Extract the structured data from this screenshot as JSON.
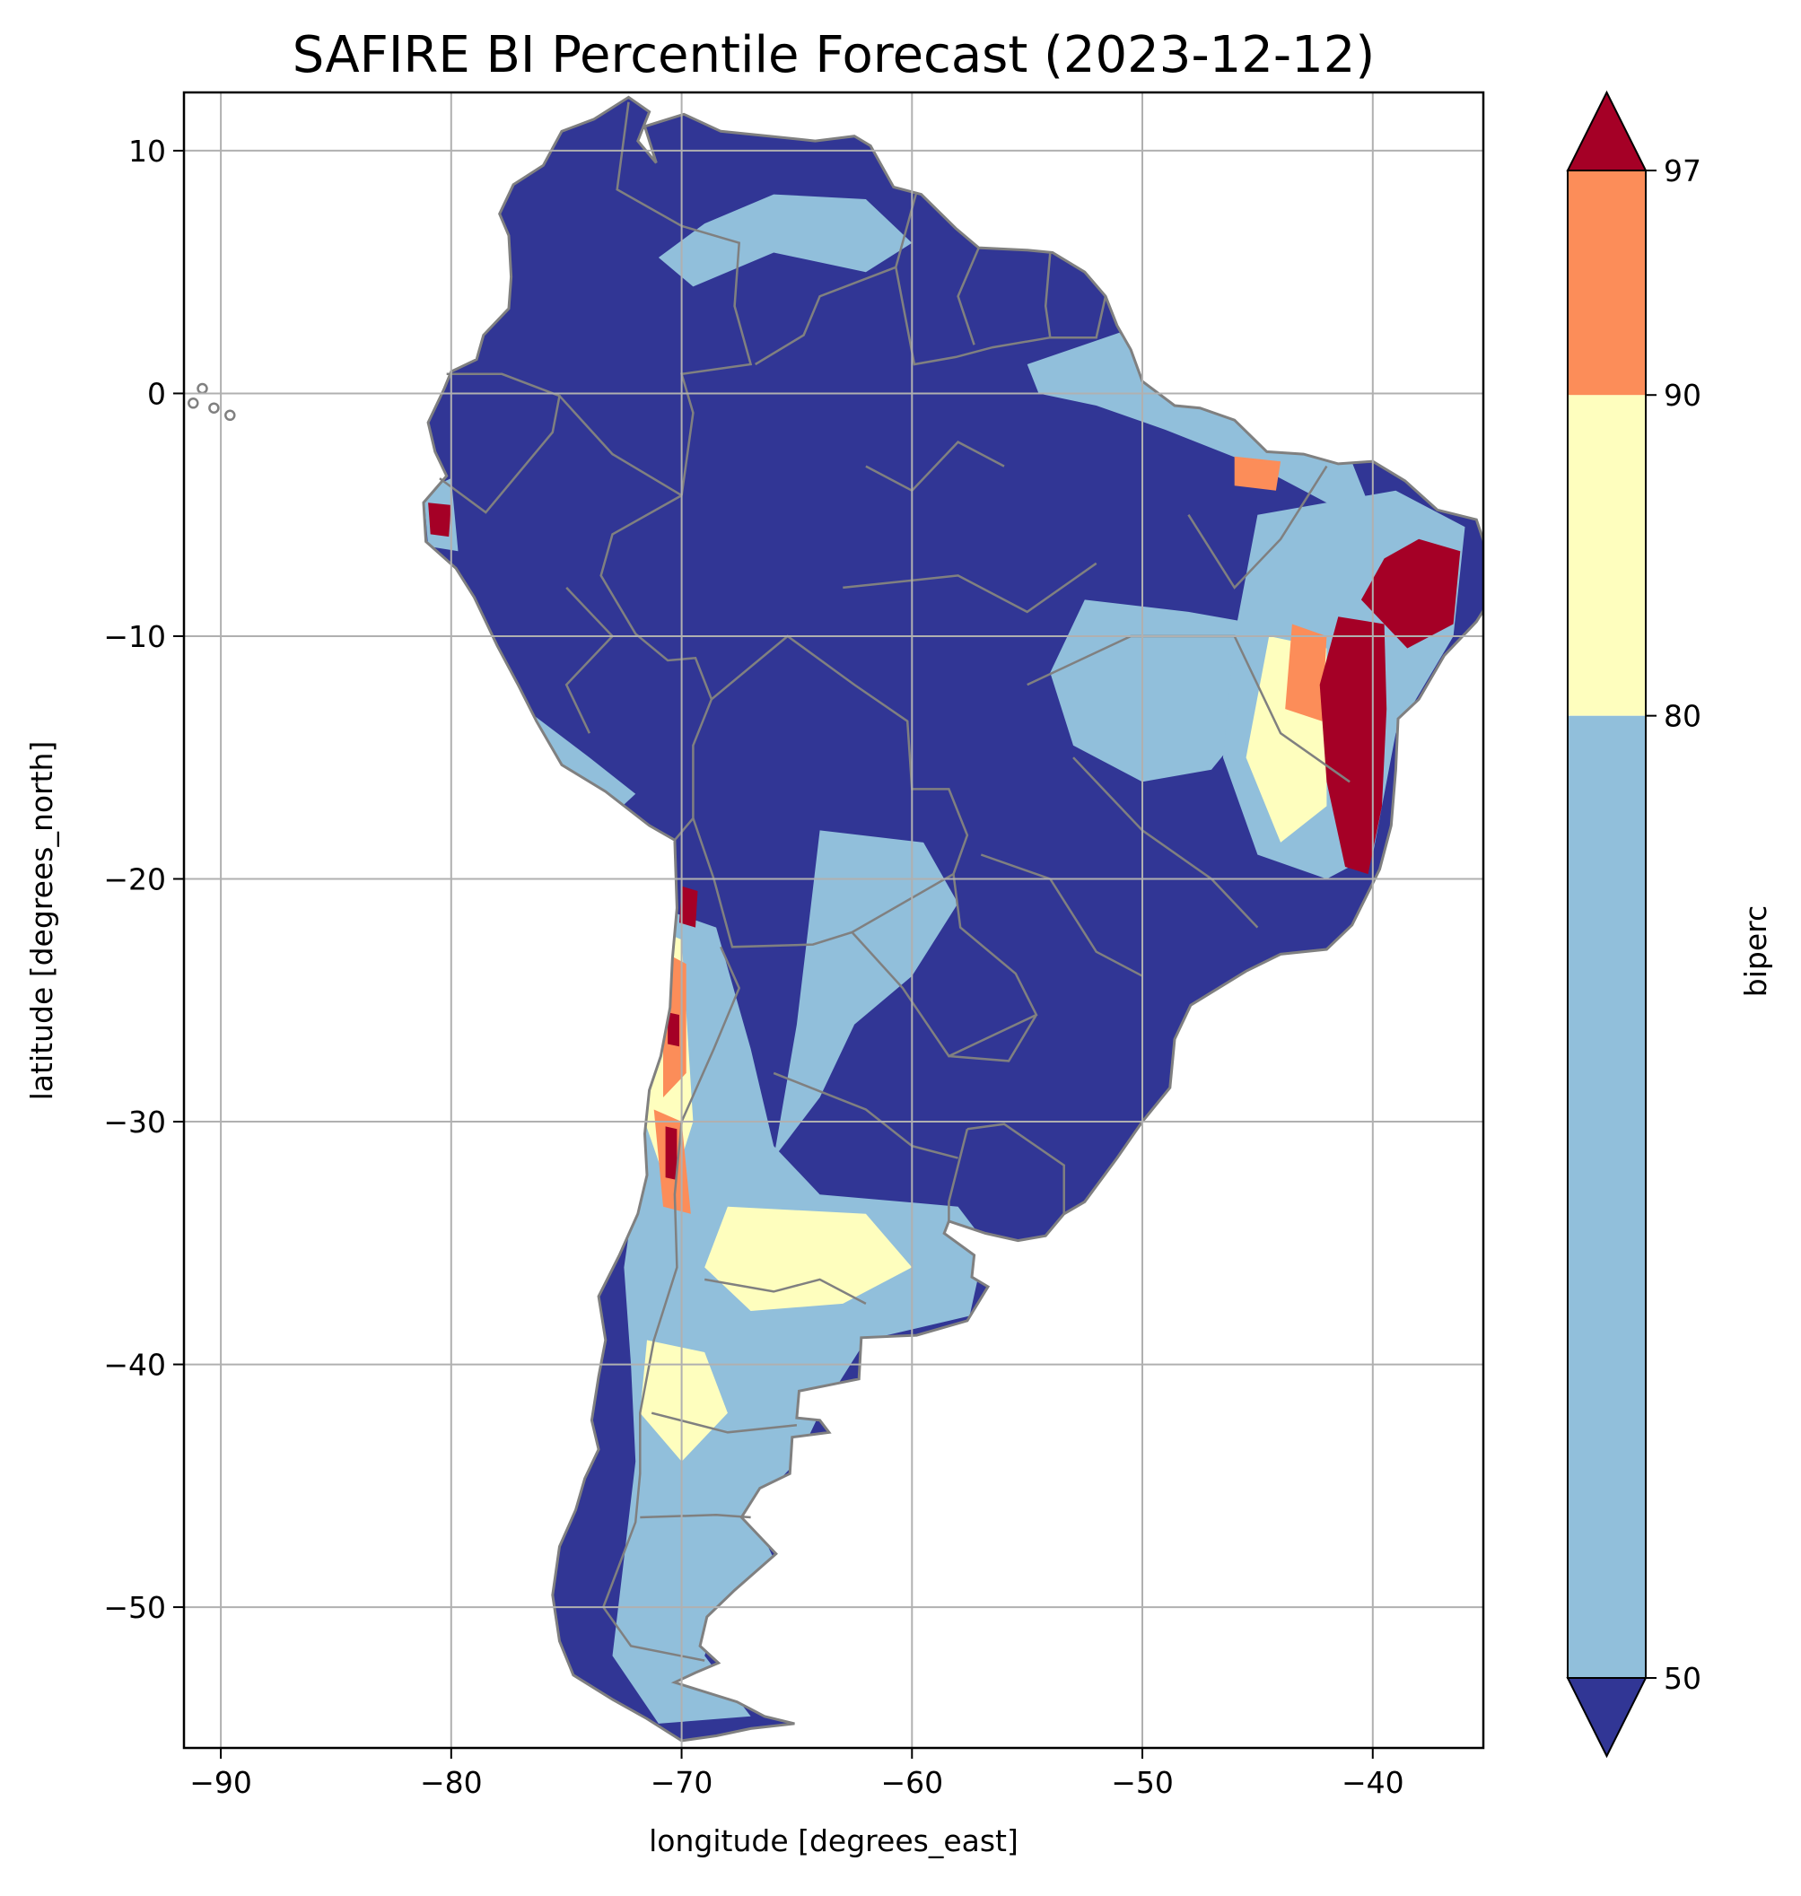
{
  "title": "SAFIRE BI Percentile Forecast (2023-12-12)",
  "map": {
    "xlabel": "longitude [degrees_east]",
    "ylabel": "latitude [degrees_north]",
    "xlim": [
      -91.6,
      -35.2
    ],
    "ylim": [
      -55.8,
      12.4
    ],
    "xticks": [
      -90,
      -80,
      -70,
      -60,
      -50,
      -40
    ],
    "yticks": [
      10,
      0,
      -10,
      -20,
      -30,
      -40,
      -50
    ],
    "xtick_labels": [
      "−90",
      "−80",
      "−70",
      "−60",
      "−50",
      "−40"
    ],
    "ytick_labels": [
      "10",
      "0",
      "−10",
      "−20",
      "−30",
      "−40",
      "−50"
    ],
    "grid": true,
    "land_outline_color": "#808080",
    "gridline_color": "#b0b0b0"
  },
  "colorbar": {
    "label": "biperc",
    "ticks": [
      50,
      80,
      90,
      97
    ],
    "tick_labels": [
      "50",
      "80",
      "90",
      "97"
    ],
    "colors": {
      "below_50": "#313695",
      "50_80": "#91bfdb",
      "80_90": "#fefebe",
      "90_97": "#fc8d59",
      "above_97": "#a50026"
    }
  }
}
